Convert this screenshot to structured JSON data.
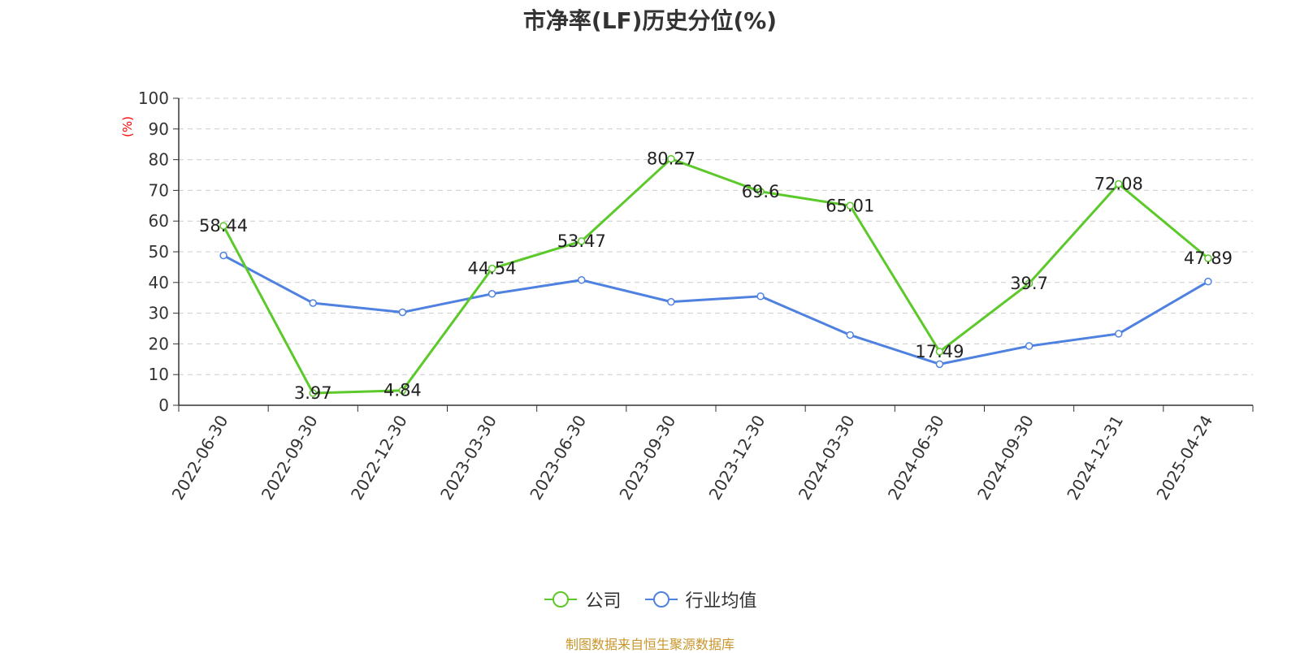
{
  "chart_data": {
    "type": "line",
    "title": "市净率(LF)历史分位(%)",
    "ylabel": "(%)",
    "ylim": [
      0,
      100
    ],
    "yticks": [
      0,
      10,
      20,
      30,
      40,
      50,
      60,
      70,
      80,
      90,
      100
    ],
    "grid": true,
    "legend_position": "bottom",
    "categories": [
      "2022-06-30",
      "2022-09-30",
      "2022-12-30",
      "2023-03-30",
      "2023-06-30",
      "2023-09-30",
      "2023-12-30",
      "2024-03-30",
      "2024-06-30",
      "2024-09-30",
      "2024-12-31",
      "2025-04-24"
    ],
    "series": [
      {
        "name": "公司",
        "color": "#5cc92b",
        "values": [
          58.44,
          3.97,
          4.84,
          44.54,
          53.47,
          80.27,
          69.6,
          65.01,
          17.49,
          39.7,
          72.08,
          47.89
        ],
        "labels": [
          "58.44",
          "3.97",
          "4.84",
          "44.54",
          "53.47",
          "80.27",
          "69.6",
          "65.01",
          "17.49",
          "39.7",
          "72.08",
          "47.89"
        ]
      },
      {
        "name": "行业均值",
        "color": "#4f82e0",
        "values": [
          48.8,
          33.3,
          30.3,
          36.3,
          40.8,
          33.7,
          35.5,
          22.9,
          13.4,
          19.3,
          23.3,
          40.3
        ]
      }
    ]
  },
  "footer": {
    "source": "制图数据来自恒生聚源数据库",
    "source_color": "#c8962a"
  },
  "colors": {
    "axis": "#333333",
    "grid": "#cccccc",
    "ylabel": "#ff0000"
  }
}
